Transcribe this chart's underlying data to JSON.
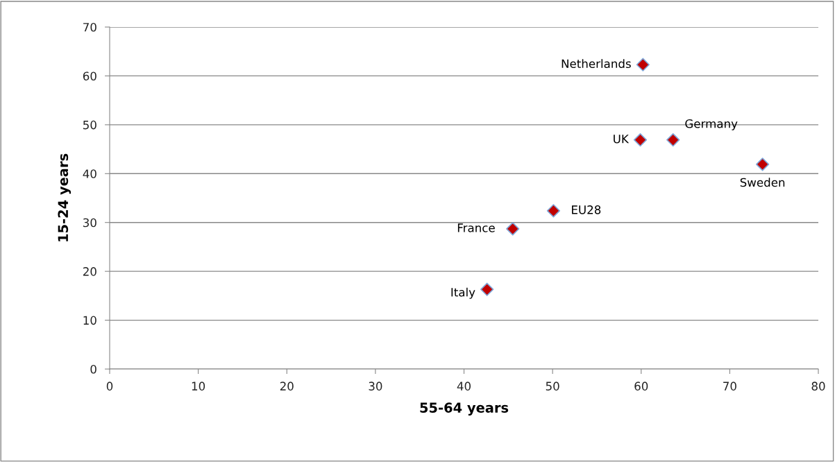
{
  "chart_data": {
    "type": "scatter",
    "xlabel": "55-64 years",
    "ylabel": "15-24 years",
    "x": [
      60.2,
      59.9,
      63.6,
      73.7,
      50.1,
      45.5,
      42.6
    ],
    "series": [
      {
        "color": "#c00000",
        "values": [
          62.3,
          46.9,
          46.9,
          41.9,
          32.4,
          28.7,
          16.3
        ]
      }
    ],
    "marker": "diamond",
    "grid": "y",
    "xlim": [
      0,
      80
    ],
    "xticks": [
      0,
      10,
      20,
      30,
      40,
      50,
      60,
      70,
      80
    ],
    "ylim": [
      0,
      70
    ],
    "yticks": [
      0,
      10,
      20,
      30,
      40,
      50,
      60,
      70
    ],
    "annotations": [
      {
        "text": "Netherlands",
        "x": 60.2,
        "y": 62.3
      },
      {
        "text": "UK",
        "x": 59.9,
        "y": 46.9
      },
      {
        "text": "Germany",
        "x": 63.6,
        "y": 46.9
      },
      {
        "text": "Sweden",
        "x": 73.7,
        "y": 41.9
      },
      {
        "text": "EU28",
        "x": 50.1,
        "y": 32.4
      },
      {
        "text": "France",
        "x": 45.5,
        "y": 28.7
      },
      {
        "text": "Italy",
        "x": 42.6,
        "y": 16.3
      }
    ]
  }
}
